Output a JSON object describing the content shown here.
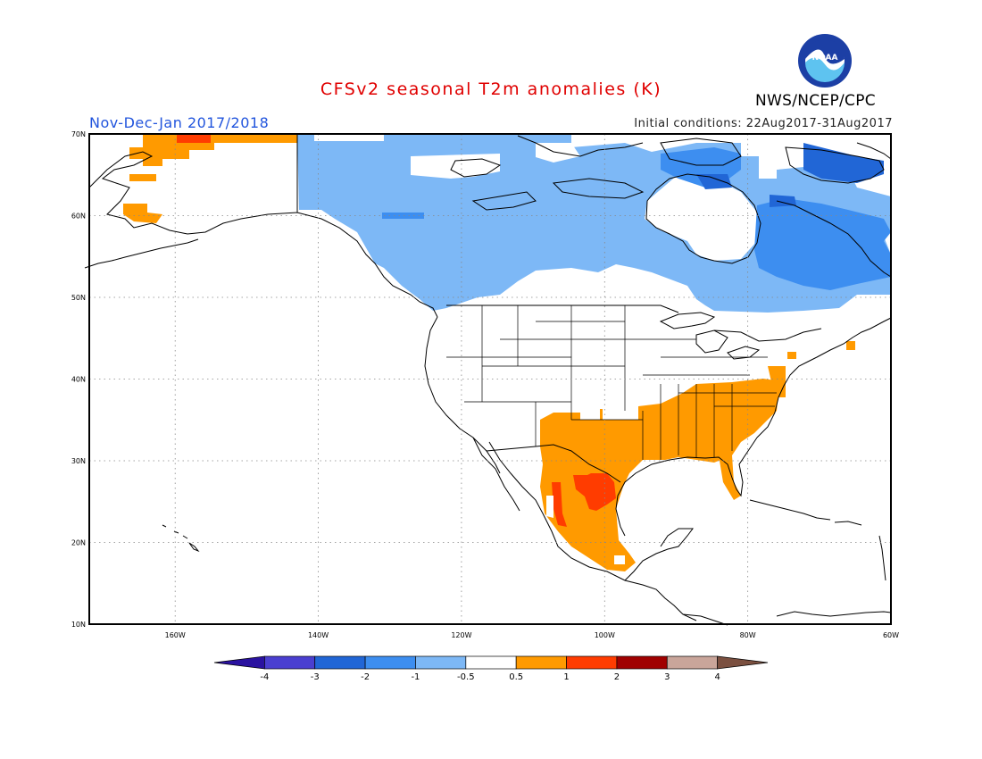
{
  "title": "CFSv2 seasonal T2m anomalies (K)",
  "period": "Nov-Dec-Jan 2017/2018",
  "initial_conditions": "Initial conditions: 22Aug2017-31Aug2017",
  "agency": "NWS/NCEP/CPC",
  "logo_text": "NOAA",
  "colors": {
    "title": "#e00000",
    "period": "#2255dd",
    "frame": "#000000",
    "land": "#ffffff",
    "coast": "#000000"
  },
  "map": {
    "lon_range": [
      -172,
      -60
    ],
    "lat_range": [
      10,
      70
    ],
    "x_ticks": [
      "160W",
      "140W",
      "120W",
      "100W",
      "80W",
      "60W"
    ],
    "x_tick_values": [
      -160,
      -140,
      -120,
      -100,
      -80,
      -60
    ],
    "y_ticks": [
      "10N",
      "20N",
      "30N",
      "40N",
      "50N",
      "60N",
      "70N"
    ],
    "y_tick_values": [
      10,
      20,
      30,
      40,
      50,
      60,
      70
    ],
    "grid": "dotted"
  },
  "colorbar": {
    "labels": [
      "-4",
      "-3",
      "-2",
      "-1",
      "-0.5",
      "0.5",
      "1",
      "2",
      "3",
      "4"
    ],
    "colors": [
      "#2a12a0",
      "#4a3fd0",
      "#2166d6",
      "#3d8ef0",
      "#7db8f6",
      "#ffffff",
      "#ff9a00",
      "#ff3c00",
      "#a00000",
      "#c9a59a",
      "#7b5040"
    ]
  },
  "anomaly_regions": [
    {
      "level": "-0.5 to -1",
      "color": "#7db8f6",
      "name": "Canada cool anomaly"
    },
    {
      "level": "-1 to -2",
      "color": "#3d8ef0",
      "name": "Eastern Canada stronger cool anomaly"
    },
    {
      "level": "0.5 to 1",
      "color": "#ff9a00",
      "name": "Southern US and Mexico warm anomaly"
    },
    {
      "level": "1 to 2",
      "color": "#ff3c00",
      "name": "Texas / Mexico strong warm anomaly"
    },
    {
      "level": "0.5 to 1",
      "color": "#ff9a00",
      "name": "Alaska warm anomaly"
    }
  ]
}
